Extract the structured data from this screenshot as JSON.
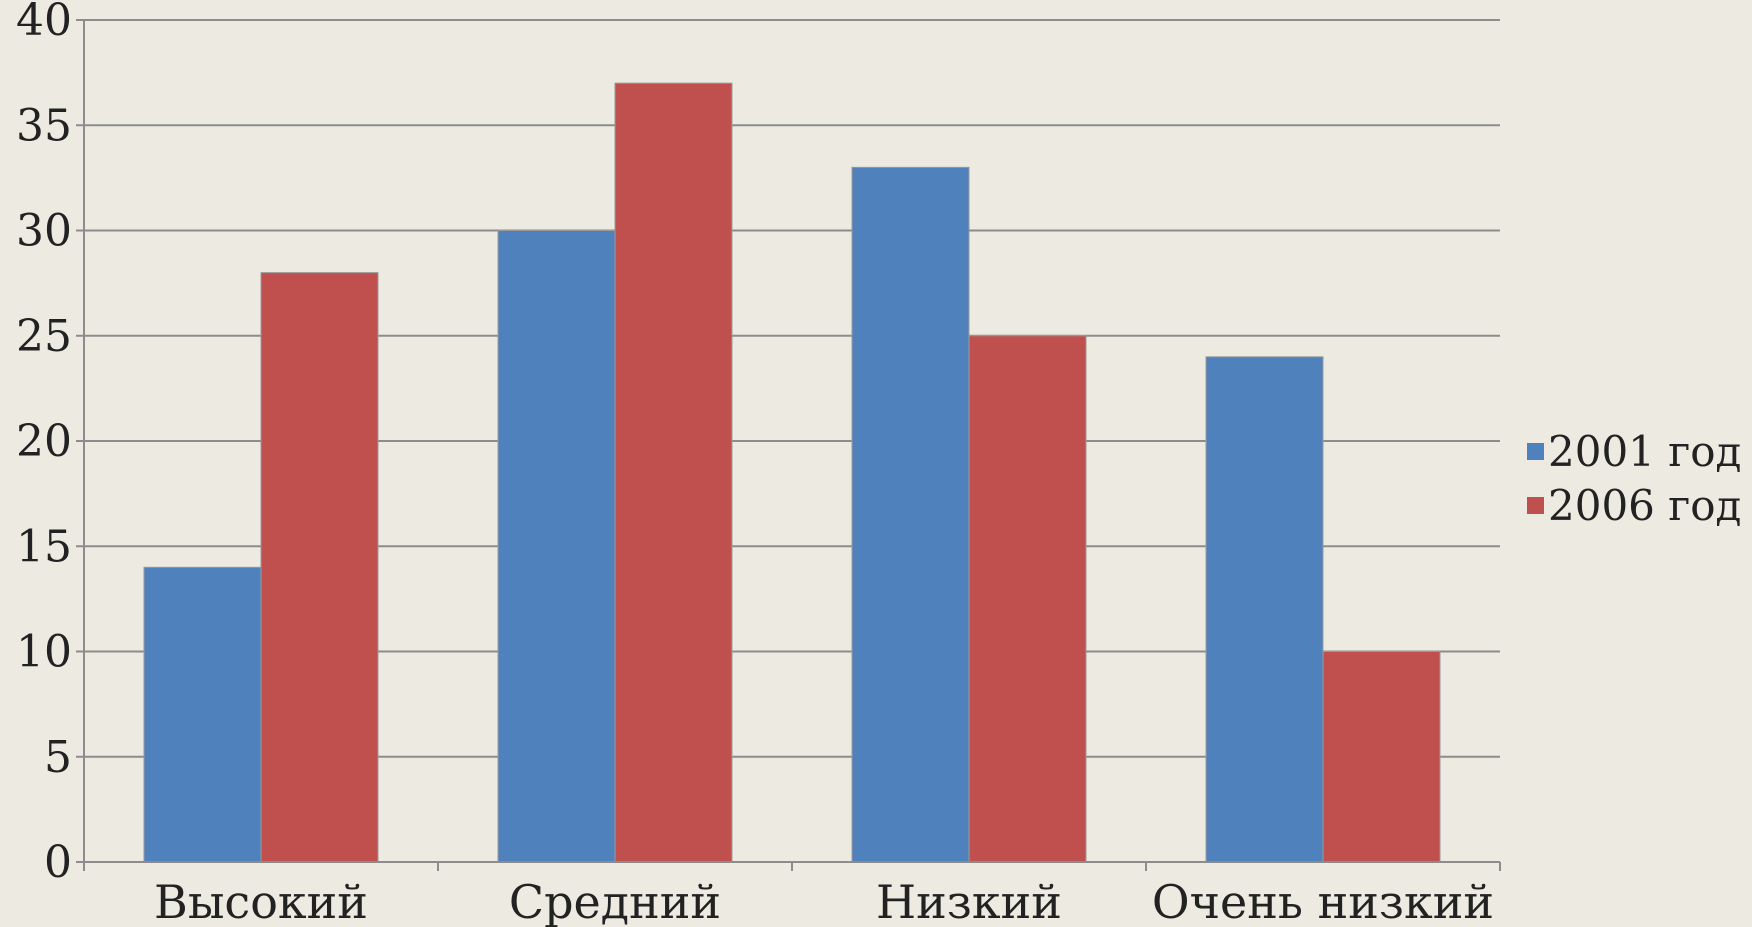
{
  "chart_data": {
    "type": "bar",
    "title": "",
    "xlabel": "",
    "ylabel": "",
    "categories": [
      "Высокий",
      "Средний",
      "Низкий",
      "Очень низкий"
    ],
    "series": [
      {
        "name": "2001 год",
        "color": "#4F81BD",
        "values": [
          14,
          30,
          33,
          24
        ]
      },
      {
        "name": "2006 год",
        "color": "#C0504D",
        "values": [
          28,
          37,
          25,
          10
        ]
      }
    ],
    "ylim": [
      0,
      40
    ],
    "yticks": [
      "0",
      "5",
      "10",
      "15",
      "20",
      "25",
      "30",
      "35",
      "40"
    ],
    "grid": true,
    "legend_position": "right"
  }
}
